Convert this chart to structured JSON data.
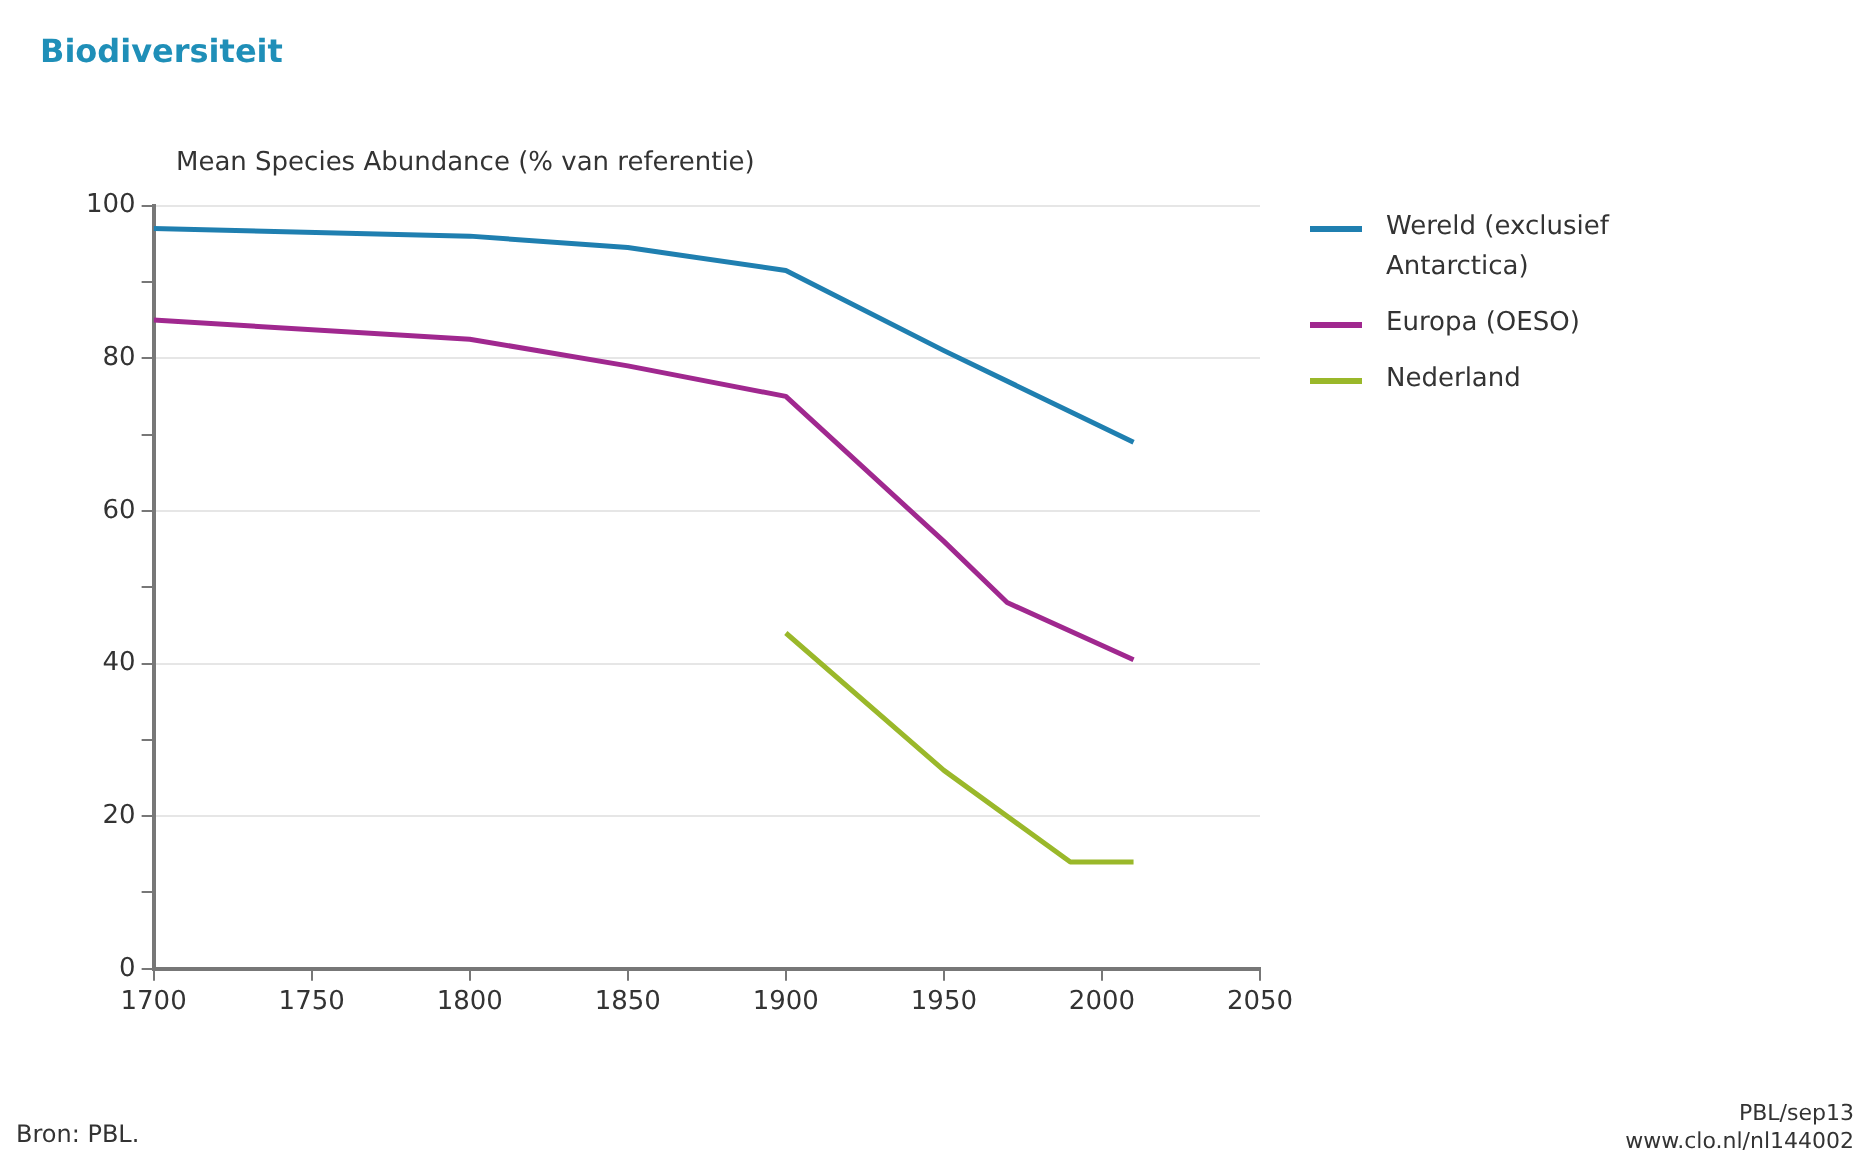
{
  "chart_data": {
    "type": "line",
    "title": "Biodiversiteit",
    "ylabel": "Mean Species Abundance (% van referentie)",
    "series": [
      {
        "name": "Wereld (exclusief Antarctica)",
        "color": "#1f7fb0",
        "x": [
          1700,
          1800,
          1850,
          1900,
          1950,
          2010
        ],
        "values": [
          97,
          96,
          94.5,
          91.5,
          81,
          69
        ]
      },
      {
        "name": "Europa (OESO)",
        "color": "#a0288f",
        "x": [
          1700,
          1800,
          1850,
          1900,
          1950,
          1970,
          2010
        ],
        "values": [
          85,
          82.5,
          79,
          75,
          56,
          48,
          40.5
        ]
      },
      {
        "name": "Nederland",
        "color": "#9ab82a",
        "x": [
          1900,
          1950,
          1990,
          2010
        ],
        "values": [
          44,
          26,
          14,
          14
        ]
      }
    ],
    "xlim": [
      1700,
      2050
    ],
    "xticks": [
      1700,
      1750,
      1800,
      1850,
      1900,
      1950,
      2000,
      2050
    ],
    "ylim": [
      0,
      100
    ],
    "yticks": [
      0,
      {
        "value": 10,
        "label": null
      },
      20,
      {
        "value": 30,
        "label": null
      },
      40,
      {
        "value": 50,
        "label": null
      },
      60,
      {
        "value": 70,
        "label": null
      },
      80,
      {
        "value": 90,
        "label": null
      },
      100
    ],
    "grid": "y",
    "legend": "right",
    "marker": "none",
    "line_style": "solid",
    "annotations": [
      "Bron: PBL.",
      "PBL/sep13",
      "www.clo.nl/nl144002"
    ]
  }
}
